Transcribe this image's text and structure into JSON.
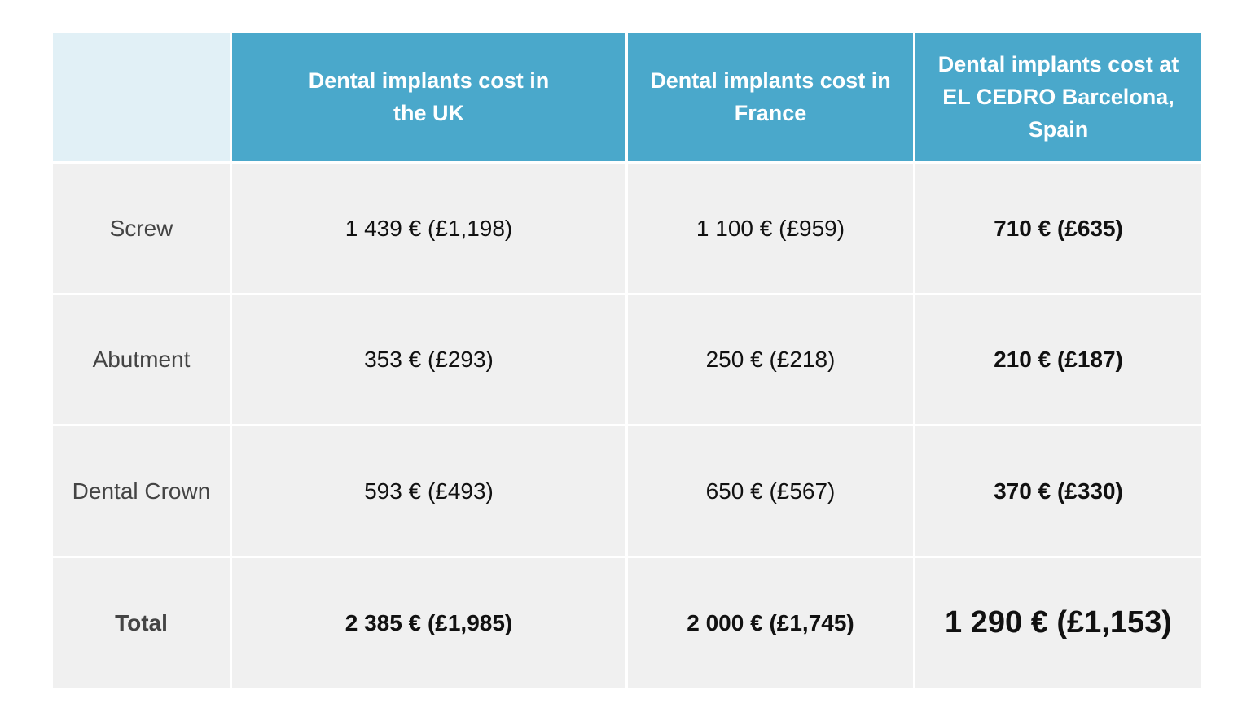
{
  "table": {
    "header": [
      "Dental implants cost in the UK",
      "Dental implants cost in France",
      "Dental implants cost at EL CEDRO Barcelona, Spain"
    ],
    "rows": [
      {
        "label": "Screw",
        "cells": [
          "1 439 € (£1,198)",
          "1 100 € (£959)",
          "710 € (£635)"
        ]
      },
      {
        "label": "Abutment",
        "cells": [
          "353 € (£293)",
          "250 € (£218)",
          "210 € (£187)"
        ]
      },
      {
        "label": "Dental Crown",
        "cells": [
          "593 € (£493)",
          "650 € (£567)",
          "370 € (£330)"
        ]
      },
      {
        "label": "Total",
        "cells": [
          "2 385 € (£1,985)",
          "2 000 € (£1,745)",
          "1 290 € (£1,153)"
        ]
      }
    ]
  }
}
